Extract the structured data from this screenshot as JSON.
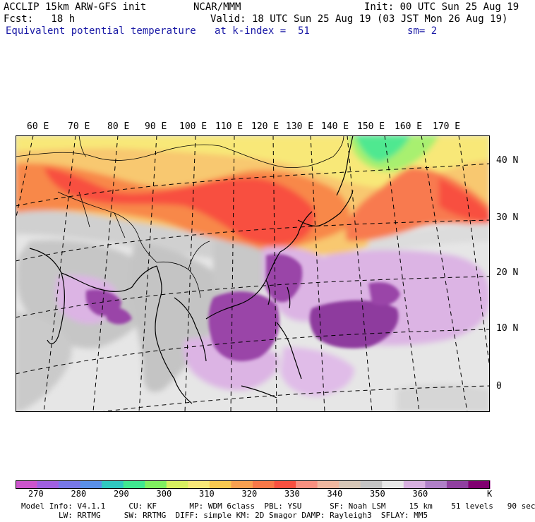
{
  "header": {
    "line1_left": "ACCLIP 15km ARW-GFS init",
    "line1_mid": "NCAR/MMM",
    "line1_right": "Init: 00 UTC Sun 25 Aug 19",
    "line2_left": "Fcst:   18 h",
    "line2_right": "Valid: 18 UTC Sun 25 Aug 19 (03 JST Mon 26 Aug 19)",
    "line3_left": "Equivalent potential temperature",
    "line3_mid": "at k-index =  51",
    "line3_right": "sm= 2"
  },
  "map": {
    "lon_labels": [
      "60 E",
      "70 E",
      "80 E",
      "90 E",
      "100 E",
      "110 E",
      "120 E",
      "130 E",
      "140 E",
      "150 E",
      "160 E",
      "170 E"
    ],
    "lat_labels": [
      "40 N",
      "30 N",
      "20 N",
      "10 N",
      "0"
    ]
  },
  "colorbar": {
    "unit": "K",
    "tick_labels": [
      "270",
      "280",
      "290",
      "300",
      "310",
      "320",
      "330",
      "340",
      "350",
      "360"
    ],
    "colors": [
      "#cc55cc",
      "#a060e0",
      "#7878e8",
      "#5a90e8",
      "#30c8c0",
      "#40e890",
      "#80f060",
      "#d8f060",
      "#f8e878",
      "#f8c850",
      "#f8a050",
      "#f87848",
      "#f85040",
      "#f89080",
      "#f0b8a0",
      "#d8c8b8",
      "#c4c4c4",
      "#e8e8e8",
      "#d8b0e0",
      "#b080c8",
      "#9040a0",
      "#800070"
    ]
  },
  "footer": {
    "line1": "Model Info: V4.1.1     CU: KF       MP: WDM 6class  PBL: YSU      SF: Noah LSM     15 km    51 levels   90 sec",
    "line2": "        LW: RRTMG     SW: RRTMG  DIFF: simple KM: 2D Smagor DAMP: Rayleigh3  SFLAY: MM5"
  }
}
